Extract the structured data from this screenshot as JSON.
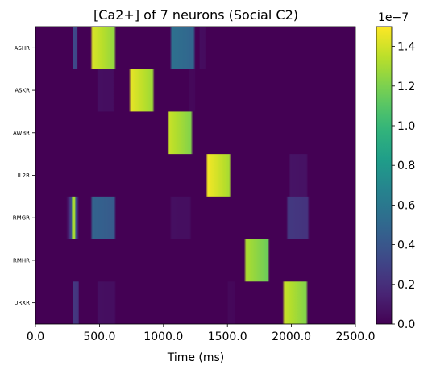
{
  "chart_data": {
    "type": "heatmap",
    "title": "[Ca2+] of 7 neurons (Social C2)",
    "xlabel": "Time (ms)",
    "ylabel": "",
    "xlim": [
      0,
      2500
    ],
    "x_ticks": [
      "0.0",
      "500.0",
      "1000.0",
      "1500.0",
      "2000.0",
      "2500.0"
    ],
    "x_tick_values": [
      0,
      500,
      1000,
      1500,
      2000,
      2500
    ],
    "rows": [
      "ASHR",
      "ASKR",
      "AWBR",
      "IL2R",
      "RMGR",
      "RMHR",
      "URXR"
    ],
    "colorbar": {
      "min": 0,
      "max": 1.5e-07,
      "ticks": [
        "0.0",
        "0.2",
        "0.4",
        "0.6",
        "0.8",
        "1.0",
        "1.2",
        "1.4"
      ],
      "tick_values": [
        0,
        0.2,
        0.4,
        0.6,
        0.8,
        1.0,
        1.2,
        1.4
      ],
      "offset_label": "1e−7",
      "colormap": "viridis"
    },
    "activity_units_note_value_scale": 1e-07,
    "activity": [
      [
        {
          "start": 290,
          "end": 330,
          "peak": 0.35
        },
        {
          "start": 430,
          "end": 630,
          "peak": 1.42
        },
        {
          "start": 1050,
          "end": 1250,
          "peak": 0.55
        },
        {
          "start": 1280,
          "end": 1330,
          "peak": 0.05
        }
      ],
      [
        {
          "start": 480,
          "end": 620,
          "peak": 0.06
        },
        {
          "start": 730,
          "end": 930,
          "peak": 1.45
        },
        {
          "start": 1200,
          "end": 1250,
          "peak": 0.03
        }
      ],
      [
        {
          "start": 1030,
          "end": 1230,
          "peak": 1.38
        }
      ],
      [
        {
          "start": 1330,
          "end": 1530,
          "peak": 1.48
        },
        {
          "start": 1980,
          "end": 2130,
          "peak": 0.08
        }
      ],
      [
        {
          "start": 240,
          "end": 340,
          "peak": 1.3,
          "core_start": 290,
          "core_end": 310
        },
        {
          "start": 430,
          "end": 630,
          "peak": 0.48
        },
        {
          "start": 1050,
          "end": 1220,
          "peak": 0.06
        },
        {
          "start": 1960,
          "end": 2140,
          "peak": 0.25
        }
      ],
      [
        {
          "start": 1630,
          "end": 1830,
          "peak": 1.32
        }
      ],
      [
        {
          "start": 290,
          "end": 340,
          "peak": 0.25
        },
        {
          "start": 480,
          "end": 630,
          "peak": 0.06
        },
        {
          "start": 1500,
          "end": 1560,
          "peak": 0.03
        },
        {
          "start": 1930,
          "end": 2130,
          "peak": 1.38
        }
      ]
    ]
  }
}
